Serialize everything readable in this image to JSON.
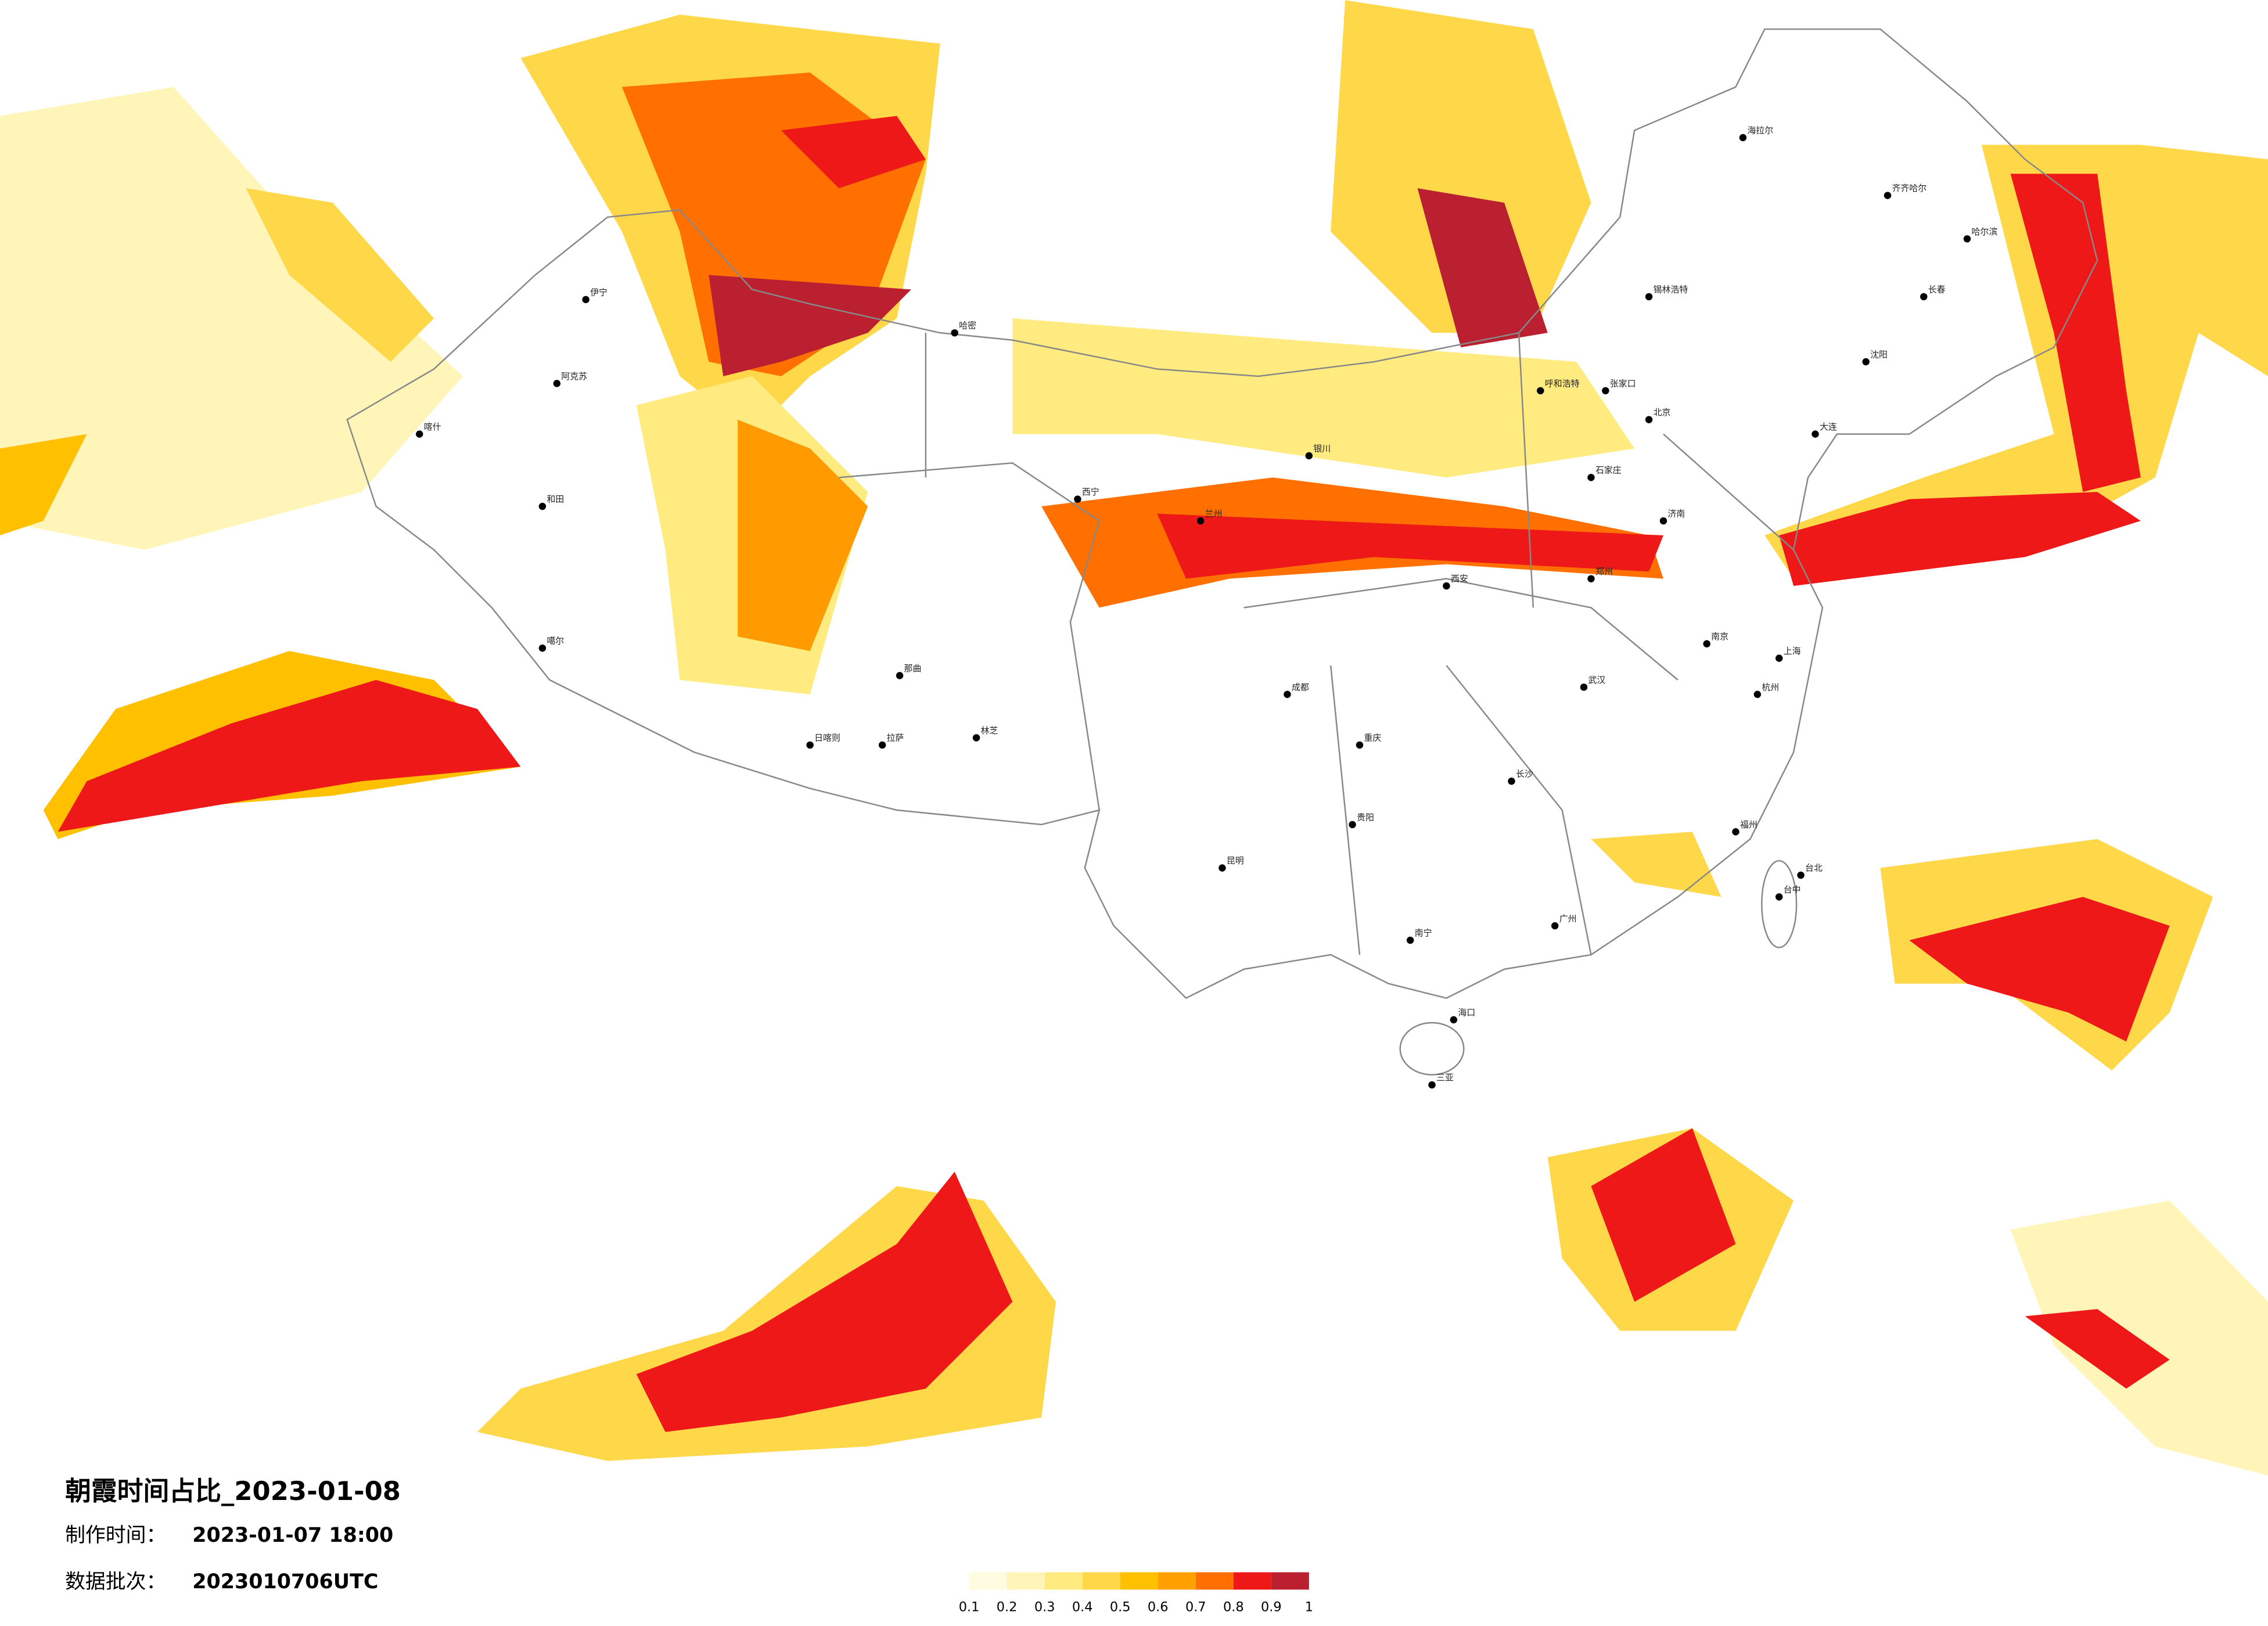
{
  "header": {
    "title": "朝霞时间占比_2023-01-08",
    "made_time_label": "制作时间：",
    "made_time": "2023-01-07 18:00",
    "batch_label": "数据批次：",
    "batch": "2023010706UTC"
  },
  "legend": {
    "ticks": [
      0.1,
      0.2,
      0.3,
      0.4,
      0.5,
      0.6,
      0.7,
      0.8,
      0.9,
      1
    ],
    "colors": [
      "#fffbe0",
      "#fff5b8",
      "#ffeb80",
      "#ffd84a",
      "#ffc000",
      "#ffa000",
      "#ff7000",
      "#ee1818",
      "#bb2030"
    ]
  },
  "cities": [
    "伊宁",
    "阿克苏",
    "喀什",
    "和田",
    "噶尔",
    "日喀则",
    "拉萨",
    "林芝",
    "那曲",
    "哈密",
    "西宁",
    "兰州",
    "银川",
    "呼和浩特",
    "张家口",
    "北京",
    "石家庄",
    "济南",
    "郑州",
    "西安",
    "成都",
    "重庆",
    "昆明",
    "贵阳",
    "南宁",
    "海口",
    "三亚",
    "广州",
    "长沙",
    "武汉",
    "南京",
    "上海",
    "杭州",
    "福州",
    "台北",
    "台中",
    "哈尔滨",
    "长春",
    "沈阳",
    "大连",
    "海拉尔",
    "齐齐哈尔",
    "锡林浩特"
  ]
}
